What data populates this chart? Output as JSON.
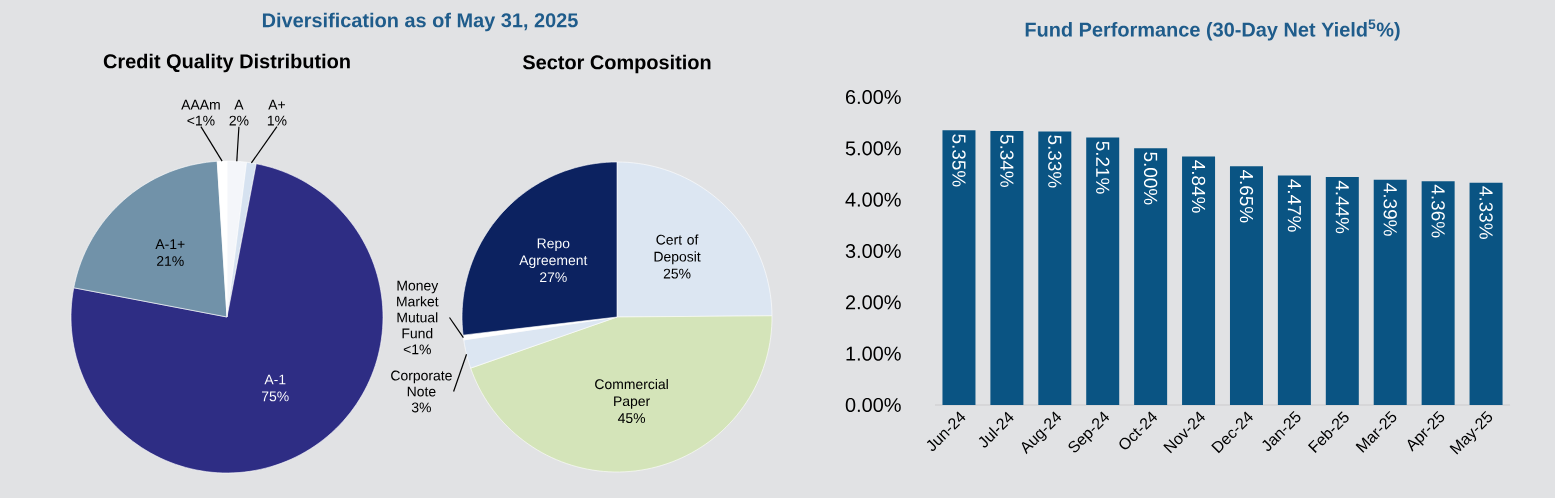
{
  "chart_data": [
    {
      "type": "pie",
      "title": "Credit Quality Distribution",
      "annotations": [
        "Diversification as of May 31, 2025"
      ],
      "categories": [
        "A",
        "A+",
        "A-1",
        "A-1+",
        "AAAm"
      ],
      "values": [
        2,
        1,
        75,
        21,
        1
      ],
      "value_labels": [
        "2%",
        "1%",
        "75%",
        "21%",
        "<1%"
      ],
      "colors": [
        "#f4f6fa",
        "#d6e2f0",
        "#2e2d84",
        "#7192a9",
        "#ffffff"
      ]
    },
    {
      "type": "pie",
      "title": "Sector Composition",
      "categories": [
        "Cert of Deposit",
        "Commercial Paper",
        "Corporate Note",
        "Money Market Mutual Fund",
        "Repo Agreement"
      ],
      "values": [
        25,
        45,
        3,
        0.5,
        27
      ],
      "value_labels": [
        "25%",
        "45%",
        "3%",
        "<1%",
        "27%"
      ],
      "colors": [
        "#dce6f2",
        "#d4e4b9",
        "#dce6f2",
        "#ffffff",
        "#0c2260"
      ]
    },
    {
      "type": "bar",
      "title": "Fund Performance (30-Day Net Yield$^{5}$%)",
      "categories": [
        "Jun-24",
        "Jul-24",
        "Aug-24",
        "Sep-24",
        "Oct-24",
        "Nov-24",
        "Dec-24",
        "Jan-25",
        "Feb-25",
        "Mar-25",
        "Apr-25",
        "May-25"
      ],
      "values": [
        5.35,
        5.34,
        5.33,
        5.21,
        5.0,
        4.84,
        4.65,
        4.47,
        4.44,
        4.39,
        4.36,
        4.33
      ],
      "value_labels": [
        "5.35%",
        "5.34%",
        "5.33%",
        "5.21%",
        "5.00%",
        "4.84%",
        "4.65%",
        "4.47%",
        "4.44%",
        "4.39%",
        "4.36%",
        "4.33%"
      ],
      "color": "#0a5483",
      "ylim": [
        0,
        6
      ],
      "yticks": [
        {
          "value": 0,
          "label": "0.00%"
        },
        {
          "value": 1,
          "label": "1.00%"
        },
        {
          "value": 2,
          "label": "2.00%"
        },
        {
          "value": 3,
          "label": "3.00%"
        },
        {
          "value": 4,
          "label": "4.00%"
        },
        {
          "value": 5,
          "label": "5.00%"
        },
        {
          "value": 6,
          "label": "6.00%"
        }
      ]
    }
  ]
}
